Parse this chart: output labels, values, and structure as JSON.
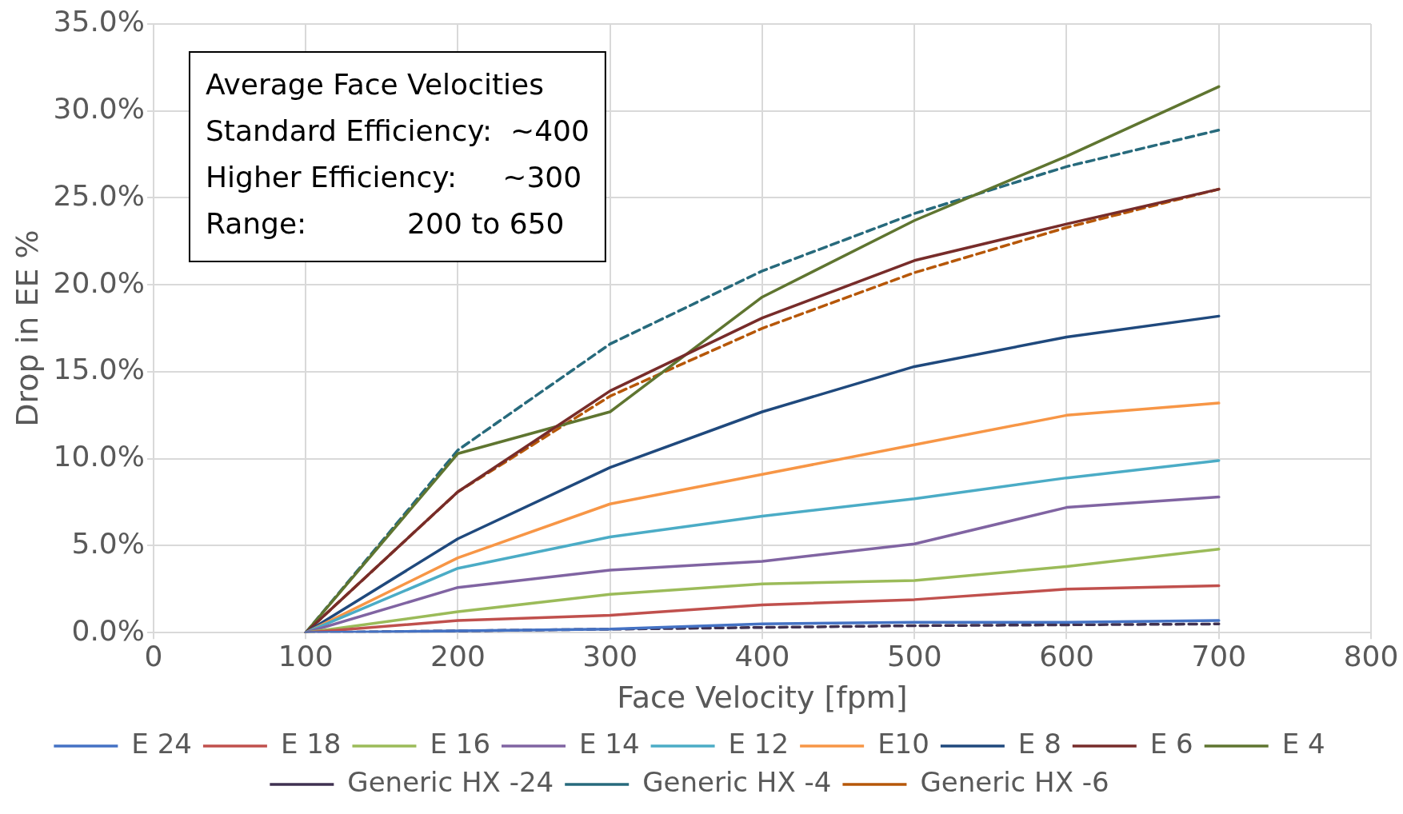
{
  "chart_data": {
    "type": "line",
    "xlabel": "Face Velocity [fpm]",
    "ylabel": "Drop in EE %",
    "x": [
      100,
      200,
      300,
      400,
      500,
      600,
      700
    ],
    "xlim": [
      0,
      800
    ],
    "xticks": [
      0,
      100,
      200,
      300,
      400,
      500,
      600,
      700,
      800
    ],
    "ylim": [
      0,
      35
    ],
    "yticks": [
      {
        "value": 0,
        "label": "0.0%"
      },
      {
        "value": 5,
        "label": "5.0%"
      },
      {
        "value": 10,
        "label": "10.0%"
      },
      {
        "value": 15,
        "label": "15.0%"
      },
      {
        "value": 20,
        "label": "20.0%"
      },
      {
        "value": 25,
        "label": "25.0%"
      },
      {
        "value": 30,
        "label": "30.0%"
      },
      {
        "value": 35,
        "label": "35.0%"
      }
    ],
    "grid": true,
    "legend": "bottom",
    "marker": "none",
    "annotations": [
      "Average Face Velocities",
      "Standard Efficiency:  ~400",
      "Higher Efficiency:     ~300",
      "Range:           200 to 650"
    ],
    "series": [
      {
        "name": "E 24",
        "color": "#4472c4",
        "values": [
          0,
          0.1,
          0.2,
          0.5,
          0.6,
          0.6,
          0.7
        ]
      },
      {
        "name": "E 18",
        "color": "#c0504d",
        "values": [
          0,
          0.7,
          1.0,
          1.6,
          1.9,
          2.5,
          2.7
        ]
      },
      {
        "name": "E 16",
        "color": "#9bbb59",
        "values": [
          0,
          1.2,
          2.2,
          2.8,
          3.0,
          3.8,
          4.8
        ]
      },
      {
        "name": "E 14",
        "color": "#8064a2",
        "values": [
          0,
          2.6,
          3.6,
          4.1,
          5.1,
          7.2,
          7.8
        ]
      },
      {
        "name": "E 12",
        "color": "#4bacc6",
        "values": [
          0,
          3.7,
          5.5,
          6.7,
          7.7,
          8.9,
          9.9
        ]
      },
      {
        "name": "E10",
        "color": "#f79646",
        "values": [
          0,
          4.3,
          7.4,
          9.1,
          10.8,
          12.5,
          13.2
        ]
      },
      {
        "name": "E 8",
        "color": "#1f497d",
        "values": [
          0,
          5.4,
          9.5,
          12.7,
          15.3,
          17.0,
          18.2
        ]
      },
      {
        "name": "E 6",
        "color": "#772c2a",
        "values": [
          0,
          8.1,
          13.9,
          18.1,
          21.4,
          23.5,
          25.5
        ]
      },
      {
        "name": "E 4",
        "color": "#5f7530",
        "values": [
          0,
          10.3,
          12.7,
          19.3,
          23.7,
          27.4,
          31.4
        ]
      },
      {
        "name": "Generic HX -24",
        "color": "#3f3151",
        "line_style": "dashed",
        "values": [
          0,
          0.1,
          0.2,
          0.3,
          0.4,
          0.45,
          0.5
        ]
      },
      {
        "name": "Generic HX -4",
        "color": "#276a7c",
        "line_style": "dashed",
        "values": [
          0,
          10.5,
          16.6,
          20.8,
          24.1,
          26.8,
          28.9
        ]
      },
      {
        "name": "Generic HX -6",
        "color": "#b65708",
        "line_style": "dashed",
        "values": [
          0,
          8.1,
          13.6,
          17.5,
          20.7,
          23.3,
          25.5
        ]
      }
    ]
  }
}
